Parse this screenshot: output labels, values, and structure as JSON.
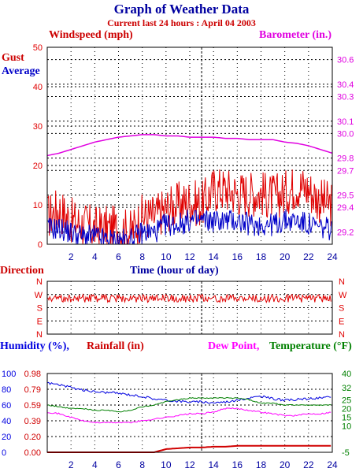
{
  "title": "Graph of Weather Data",
  "subtitle": "Current last 24 hours : April 04 2003",
  "colors": {
    "gust": "#e00000",
    "average": "#0000c8",
    "barometer": "#e000e0",
    "humidity": "#0000e0",
    "rainfall": "#d00000",
    "dewpoint": "#ff00ff",
    "temperature": "#008000",
    "title": "#0000a0",
    "subtitle": "#cc0000",
    "grid": "#000000"
  },
  "labels": {
    "windspeed": "Windspeed (mph)",
    "barometer": "Barometer (in.)",
    "gust": "Gust",
    "average": "Average",
    "time": "Time (hour of day)",
    "direction": "Direction",
    "humidity": "Humidity (%),",
    "rainfall": "Rainfall (in)",
    "dewpoint": "Dew Point,",
    "temperature": "Temperature (°F)"
  },
  "chart_data": [
    {
      "type": "line",
      "title": "Windspeed / Barometer",
      "xlabel": "Time (hour of day)",
      "xlim": [
        0,
        24
      ],
      "x_ticks": [
        "2",
        "4",
        "6",
        "8",
        "10",
        "12",
        "14",
        "16",
        "18",
        "20",
        "22",
        "24"
      ],
      "y_left": {
        "label": "Windspeed (mph)",
        "ticks": [
          "0",
          "10",
          "20",
          "30",
          "40",
          "50"
        ],
        "ylim": [
          0,
          50
        ]
      },
      "y_right": {
        "label": "Barometer (in.)",
        "ticks": [
          "29.2",
          "29.4",
          "29.5",
          "29.7",
          "29.8",
          "30.0",
          "30.1",
          "30.3",
          "30.4",
          "30.6"
        ],
        "ylim": [
          29.1,
          30.7
        ]
      },
      "x": [
        0,
        1,
        2,
        3,
        4,
        5,
        6,
        7,
        8,
        9,
        10,
        11,
        12,
        13,
        14,
        15,
        16,
        17,
        18,
        19,
        20,
        21,
        22,
        23,
        24
      ],
      "series": [
        {
          "name": "Gust",
          "axis": "left",
          "values": [
            7,
            9,
            6,
            5,
            4,
            4,
            4,
            3,
            7,
            7,
            9,
            10,
            11,
            10,
            14,
            14,
            13,
            13,
            13,
            12,
            13,
            15,
            14,
            11,
            10
          ]
        },
        {
          "name": "Average",
          "axis": "left",
          "values": [
            4,
            4,
            3,
            2,
            2,
            1,
            1,
            1,
            3,
            3,
            5,
            5,
            6,
            6,
            6,
            6,
            6,
            5,
            5,
            5,
            6,
            6,
            5,
            4,
            4
          ]
        },
        {
          "name": "Barometer",
          "axis": "right",
          "values": [
            29.82,
            29.84,
            29.87,
            29.9,
            29.93,
            29.95,
            29.97,
            29.98,
            29.99,
            29.99,
            29.98,
            29.98,
            29.97,
            29.97,
            29.97,
            29.96,
            29.96,
            29.95,
            29.95,
            29.95,
            29.93,
            29.92,
            29.9,
            29.87,
            29.84
          ]
        }
      ],
      "vline_x": 13,
      "grid": true
    },
    {
      "type": "line",
      "title": "Direction",
      "xlim": [
        0,
        24
      ],
      "y_ticks": [
        "N",
        "W",
        "S",
        "E",
        "N"
      ],
      "x": [
        0,
        1,
        2,
        3,
        4,
        5,
        6,
        7,
        8,
        9,
        10,
        11,
        12,
        13,
        14,
        15,
        16,
        17,
        18,
        19,
        20,
        21,
        22,
        23,
        24
      ],
      "series": [
        {
          "name": "Direction",
          "values": [
            "W",
            "W",
            "W",
            "W",
            "W",
            "W",
            "W",
            "W",
            "W",
            "W",
            "W",
            "W",
            "W",
            "W",
            "W",
            "W",
            "W",
            "W",
            "W",
            "W",
            "W",
            "W",
            "W",
            "W",
            "W"
          ]
        }
      ],
      "grid": true
    },
    {
      "type": "line",
      "title": "Humidity / Rainfall / Dew Point / Temperature",
      "xlabel": "",
      "xlim": [
        0,
        24
      ],
      "x_ticks": [
        "2",
        "4",
        "6",
        "8",
        "10",
        "12",
        "14",
        "16",
        "18",
        "20",
        "22",
        "24"
      ],
      "y_left_humidity": {
        "ticks": [
          "0",
          "20",
          "40",
          "60",
          "80",
          "100"
        ],
        "ylim": [
          0,
          100
        ]
      },
      "y_left_rainfall": {
        "ticks": [
          "0.00",
          "0.20",
          "0.39",
          "0.59",
          "0.79",
          "0.98"
        ],
        "ylim": [
          0,
          0.98
        ]
      },
      "y_right": {
        "ticks": [
          "-5",
          "10",
          "15",
          "20",
          "25",
          "32",
          "40"
        ],
        "ylim": [
          -5,
          40
        ]
      },
      "x": [
        0,
        1,
        2,
        3,
        4,
        5,
        6,
        7,
        8,
        9,
        10,
        11,
        12,
        13,
        14,
        15,
        16,
        17,
        18,
        19,
        20,
        21,
        22,
        23,
        24
      ],
      "series": [
        {
          "name": "Humidity",
          "axis": "left",
          "values": [
            88,
            86,
            82,
            79,
            77,
            76,
            75,
            73,
            71,
            68,
            66,
            65,
            64,
            64,
            63,
            64,
            66,
            69,
            71,
            68,
            66,
            67,
            68,
            69,
            70
          ]
        },
        {
          "name": "Rainfall",
          "axis": "left2",
          "values": [
            0,
            0,
            0,
            0,
            0,
            0,
            0,
            0,
            0,
            0,
            0.04,
            0.05,
            0.06,
            0.06,
            0.07,
            0.07,
            0.08,
            0.08,
            0.08,
            0.08,
            0.08,
            0.08,
            0.08,
            0.08,
            0.08
          ]
        },
        {
          "name": "Dew Point",
          "axis": "right",
          "values": [
            18,
            17,
            15,
            13,
            12,
            12,
            12,
            12,
            13,
            14,
            15,
            16,
            17,
            17,
            18,
            20,
            20,
            19,
            18,
            17,
            16,
            16,
            17,
            17,
            18
          ]
        },
        {
          "name": "Temperature",
          "axis": "right",
          "values": [
            22,
            21,
            20,
            20,
            19,
            19,
            18,
            19,
            21,
            22,
            24,
            25,
            26,
            26,
            26,
            26,
            26,
            25,
            23,
            23,
            22,
            22,
            22,
            22,
            22
          ]
        }
      ],
      "vline_x": 13,
      "grid": true
    }
  ]
}
